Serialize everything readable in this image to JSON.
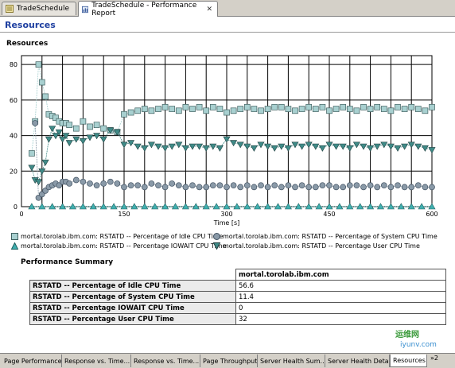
{
  "editor_tabs": [
    {
      "label": "TradeSchedule"
    },
    {
      "label": "TradeSchedule - Performance Report"
    }
  ],
  "pane_title": "Resources",
  "chart_data": {
    "type": "line",
    "title": "Resources",
    "xlabel": "Time [s]",
    "ylabel": "",
    "xlim": [
      0,
      600
    ],
    "ylim": [
      0,
      85
    ],
    "xticks": [
      0,
      150,
      300,
      450,
      600
    ],
    "yticks": [
      0,
      20,
      40,
      60,
      80
    ],
    "grid": true,
    "legend_placement": "bottom",
    "series": [
      {
        "name": "mortal.torolab.ibm.com: RSTATD -- Percentage of Idle CPU Time",
        "color": "#a8d0d0",
        "marker": "square",
        "x": [
          15,
          20,
          25,
          30,
          35,
          40,
          45,
          50,
          55,
          60,
          65,
          70,
          80,
          90,
          100,
          110,
          120,
          130,
          140,
          150,
          160,
          170,
          180,
          190,
          200,
          210,
          220,
          230,
          240,
          250,
          260,
          270,
          280,
          290,
          300,
          310,
          320,
          330,
          340,
          350,
          360,
          370,
          380,
          390,
          400,
          410,
          420,
          430,
          440,
          450,
          460,
          470,
          480,
          490,
          500,
          510,
          520,
          530,
          540,
          550,
          560,
          570,
          580,
          590,
          600
        ],
        "values": [
          30,
          48,
          80,
          70,
          62,
          52,
          51,
          50,
          48,
          47,
          47,
          46,
          44,
          48,
          45,
          46,
          44,
          43,
          42,
          52,
          53,
          54,
          55,
          54,
          55,
          56,
          55,
          54,
          56,
          55,
          56,
          54,
          56,
          55,
          53,
          54,
          55,
          56,
          55,
          54,
          55,
          56,
          56,
          55,
          54,
          55,
          56,
          55,
          56,
          54,
          55,
          56,
          55,
          54,
          56,
          55,
          56,
          55,
          54,
          56,
          55,
          56,
          55,
          54,
          56
        ]
      },
      {
        "name": "mortal.torolab.ibm.com: RSTATD -- Percentage IOWAIT CPU Time",
        "color": "#40b0b0",
        "marker": "triangle",
        "x": [
          15,
          30,
          45,
          60,
          75,
          90,
          105,
          120,
          135,
          150,
          165,
          180,
          195,
          210,
          225,
          240,
          255,
          270,
          285,
          300,
          315,
          330,
          345,
          360,
          375,
          390,
          405,
          420,
          435,
          450,
          465,
          480,
          495,
          510,
          525,
          540,
          555,
          570,
          585,
          600
        ],
        "values": [
          0,
          0,
          0,
          0,
          0,
          0,
          0,
          0,
          0,
          0,
          0,
          0,
          0,
          0,
          0,
          0,
          0,
          0,
          0,
          0,
          0,
          0,
          0,
          0,
          0,
          0,
          0,
          0,
          0,
          0,
          0,
          0,
          0,
          0,
          0,
          0,
          0,
          0,
          0,
          0
        ]
      },
      {
        "name": "mortal.torolab.ibm.com: RSTATD -- Percentage of System CPU Time",
        "color": "#8a9aa8",
        "marker": "circle",
        "x": [
          20,
          25,
          30,
          35,
          40,
          45,
          50,
          55,
          60,
          65,
          70,
          80,
          90,
          100,
          110,
          120,
          130,
          140,
          150,
          160,
          170,
          180,
          190,
          200,
          210,
          220,
          230,
          240,
          250,
          260,
          270,
          280,
          290,
          300,
          310,
          320,
          330,
          340,
          350,
          360,
          370,
          380,
          390,
          400,
          410,
          420,
          430,
          440,
          450,
          460,
          470,
          480,
          490,
          500,
          510,
          520,
          530,
          540,
          550,
          560,
          570,
          580,
          590,
          600
        ],
        "values": [
          47,
          5,
          7,
          9,
          11,
          12,
          13,
          12,
          14,
          14,
          13,
          15,
          14,
          13,
          12,
          13,
          14,
          13,
          11,
          12,
          12,
          11,
          13,
          12,
          11,
          13,
          12,
          11,
          12,
          11,
          11,
          12,
          12,
          11,
          12,
          11,
          12,
          11,
          12,
          11,
          12,
          11,
          12,
          11,
          12,
          11,
          11,
          12,
          12,
          11,
          11,
          12,
          12,
          11,
          12,
          11,
          12,
          11,
          12,
          11,
          11,
          12,
          11,
          11
        ]
      },
      {
        "name": "mortal.torolab.ibm.com: RSTATD -- Percentage User CPU Time",
        "color": "#408b88",
        "marker": "triangle-down",
        "x": [
          15,
          20,
          25,
          30,
          35,
          40,
          45,
          50,
          55,
          60,
          65,
          70,
          80,
          90,
          100,
          110,
          120,
          130,
          140,
          150,
          160,
          170,
          180,
          190,
          200,
          210,
          220,
          230,
          240,
          250,
          260,
          270,
          280,
          290,
          300,
          310,
          320,
          330,
          340,
          350,
          360,
          370,
          380,
          390,
          400,
          410,
          420,
          430,
          440,
          450,
          460,
          470,
          480,
          490,
          500,
          510,
          520,
          530,
          540,
          550,
          560,
          570,
          580,
          590,
          600
        ],
        "values": [
          22,
          15,
          14,
          20,
          25,
          38,
          44,
          40,
          42,
          38,
          40,
          36,
          38,
          37,
          39,
          40,
          38,
          43,
          42,
          35,
          36,
          34,
          33,
          35,
          34,
          33,
          34,
          35,
          33,
          34,
          34,
          33,
          34,
          33,
          38,
          36,
          35,
          34,
          33,
          35,
          34,
          33,
          34,
          33,
          35,
          34,
          35,
          34,
          33,
          35,
          34,
          34,
          33,
          35,
          34,
          33,
          34,
          35,
          34,
          33,
          34,
          35,
          34,
          33,
          32
        ]
      }
    ]
  },
  "legend": [
    {
      "label": "mortal.torolab.ibm.com: RSTATD -- Percentage of Idle CPU Time",
      "marker": "square",
      "color": "#a8d0d0"
    },
    {
      "label": "mortal.torolab.ibm.com: RSTATD -- Percentage of System CPU Time",
      "marker": "circle",
      "color": "#8a9aa8"
    },
    {
      "label": "mortal.torolab.ibm.com: RSTATD -- Percentage IOWAIT CPU Time",
      "marker": "triangle",
      "color": "#40b0b0"
    },
    {
      "label": "mortal.torolab.ibm.com: RSTATD -- Percentage User CPU Time",
      "marker": "triangle-down",
      "color": "#408b88"
    }
  ],
  "summary": {
    "title": "Performance Summary",
    "column_header": "mortal.torolab.ibm.com",
    "rows": [
      {
        "label": "RSTATD -- Percentage of Idle CPU Time",
        "value": "56.6"
      },
      {
        "label": "RSTATD -- Percentage of System CPU Time",
        "value": "11.4"
      },
      {
        "label": "RSTATD -- Percentage IOWAIT CPU Time",
        "value": "0"
      },
      {
        "label": "RSTATD -- Percentage User CPU Time",
        "value": "32"
      }
    ]
  },
  "bottom_tabs": [
    {
      "label": "Page Performance"
    },
    {
      "label": "Response vs. Time..."
    },
    {
      "label": "Response vs. Time..."
    },
    {
      "label": "Page Throughput"
    },
    {
      "label": "Server Health Sum..."
    },
    {
      "label": "Server Health Detail"
    },
    {
      "label": "Resources"
    }
  ],
  "overflow_count": "»2",
  "watermark": {
    "text1": "运维网",
    "text2": "iyunv.com"
  }
}
